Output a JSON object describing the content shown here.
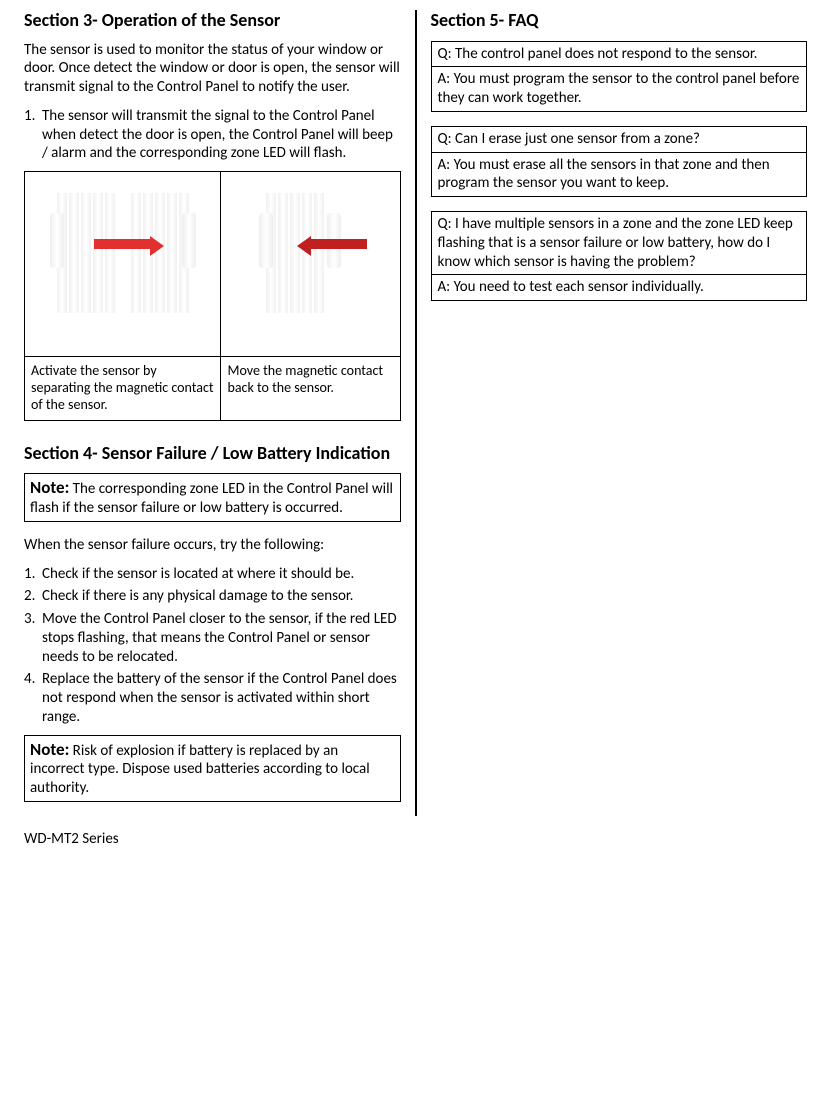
{
  "left": {
    "section3": {
      "title": "Section 3- Operation of the Sensor",
      "intro": "The sensor is used to monitor the status of your window or door. Once detect the window or door is open, the sensor will transmit signal to the Control Panel to notify the user.",
      "step1_num": "1.",
      "step1_text": "The sensor will transmit the signal to the Control Panel when detect the door is open, the Control Panel will beep / alarm and the corresponding zone LED will flash.",
      "caption_a": "Activate the sensor by separating the magnetic contact of the sensor.",
      "caption_b": "Move the magnetic contact back to the sensor.",
      "arrow_color_a": "#e03030",
      "arrow_color_b": "#c02020"
    },
    "section4": {
      "title": "Section 4- Sensor Failure / Low Battery Indication",
      "note1_label": "Note:",
      "note1_text": " The corresponding zone LED in the Control Panel will flash if the sensor failure or low battery is occurred.",
      "intro": "When the sensor failure occurs, try the following:",
      "steps": [
        {
          "num": "1.",
          "text": "Check if the sensor is located at where it should be."
        },
        {
          "num": "2.",
          "text": "Check if there is any physical damage to the sensor."
        },
        {
          "num": "3.",
          "text": "Move the Control Panel closer to the sensor, if the red LED stops flashing, that means the Control Panel or sensor needs to be relocated."
        },
        {
          "num": "4.",
          "text": "Replace the battery of the sensor if the Control Panel does not respond when the sensor is activated within short range."
        }
      ],
      "note2_label": "Note:",
      "note2_text": " Risk of explosion if battery is replaced by an incorrect type. Dispose used batteries according to local authority."
    }
  },
  "right": {
    "section5": {
      "title": "Section 5- FAQ",
      "faq": [
        {
          "q": "Q: The control panel does not respond to the sensor.",
          "a": "A: You must program the sensor to the control panel before they can work together."
        },
        {
          "q": "Q: Can I erase just one sensor from a zone?",
          "a": "A: You must erase all the sensors in that zone and then program the sensor you want to keep."
        },
        {
          "q": "Q: I have multiple sensors in a zone and the zone LED keep flashing that is a sensor failure or low battery, how do I know which sensor is having the problem?",
          "a": "A: You need to test each sensor individually."
        }
      ]
    }
  },
  "footer": "WD-MT2 Series"
}
